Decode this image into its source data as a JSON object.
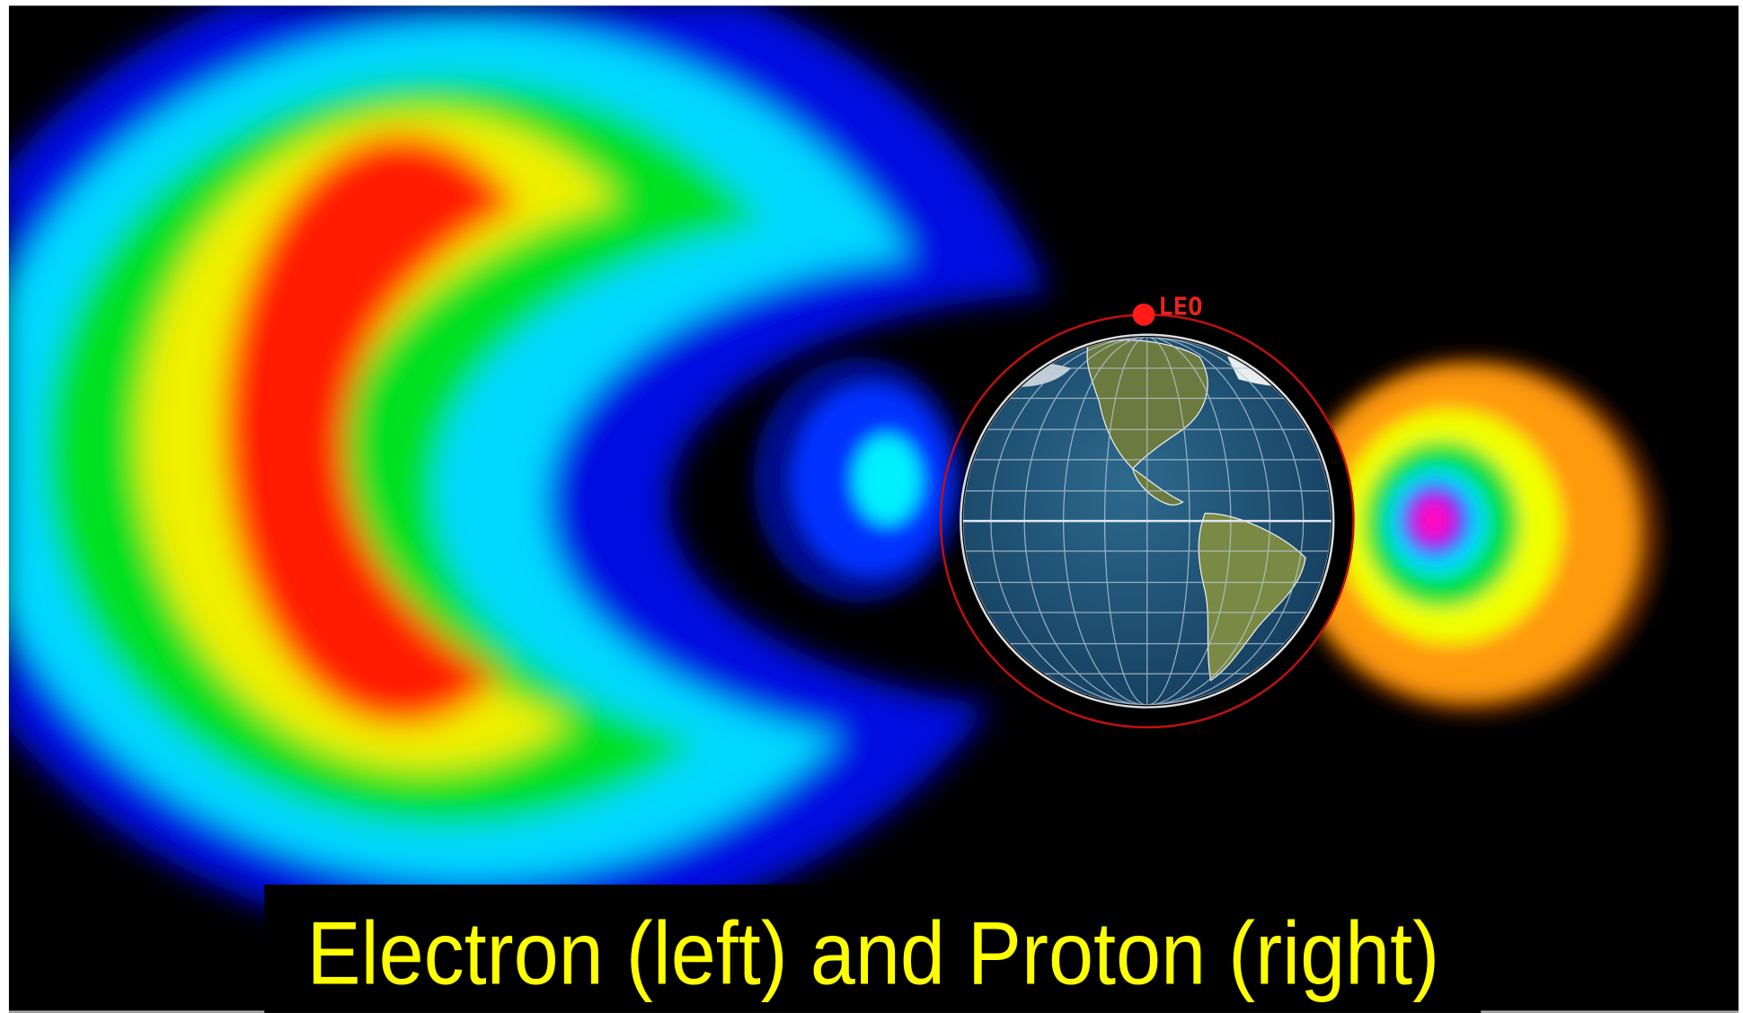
{
  "orbit_label": "LEO",
  "caption": "Electron (left) and Proton (right)"
}
